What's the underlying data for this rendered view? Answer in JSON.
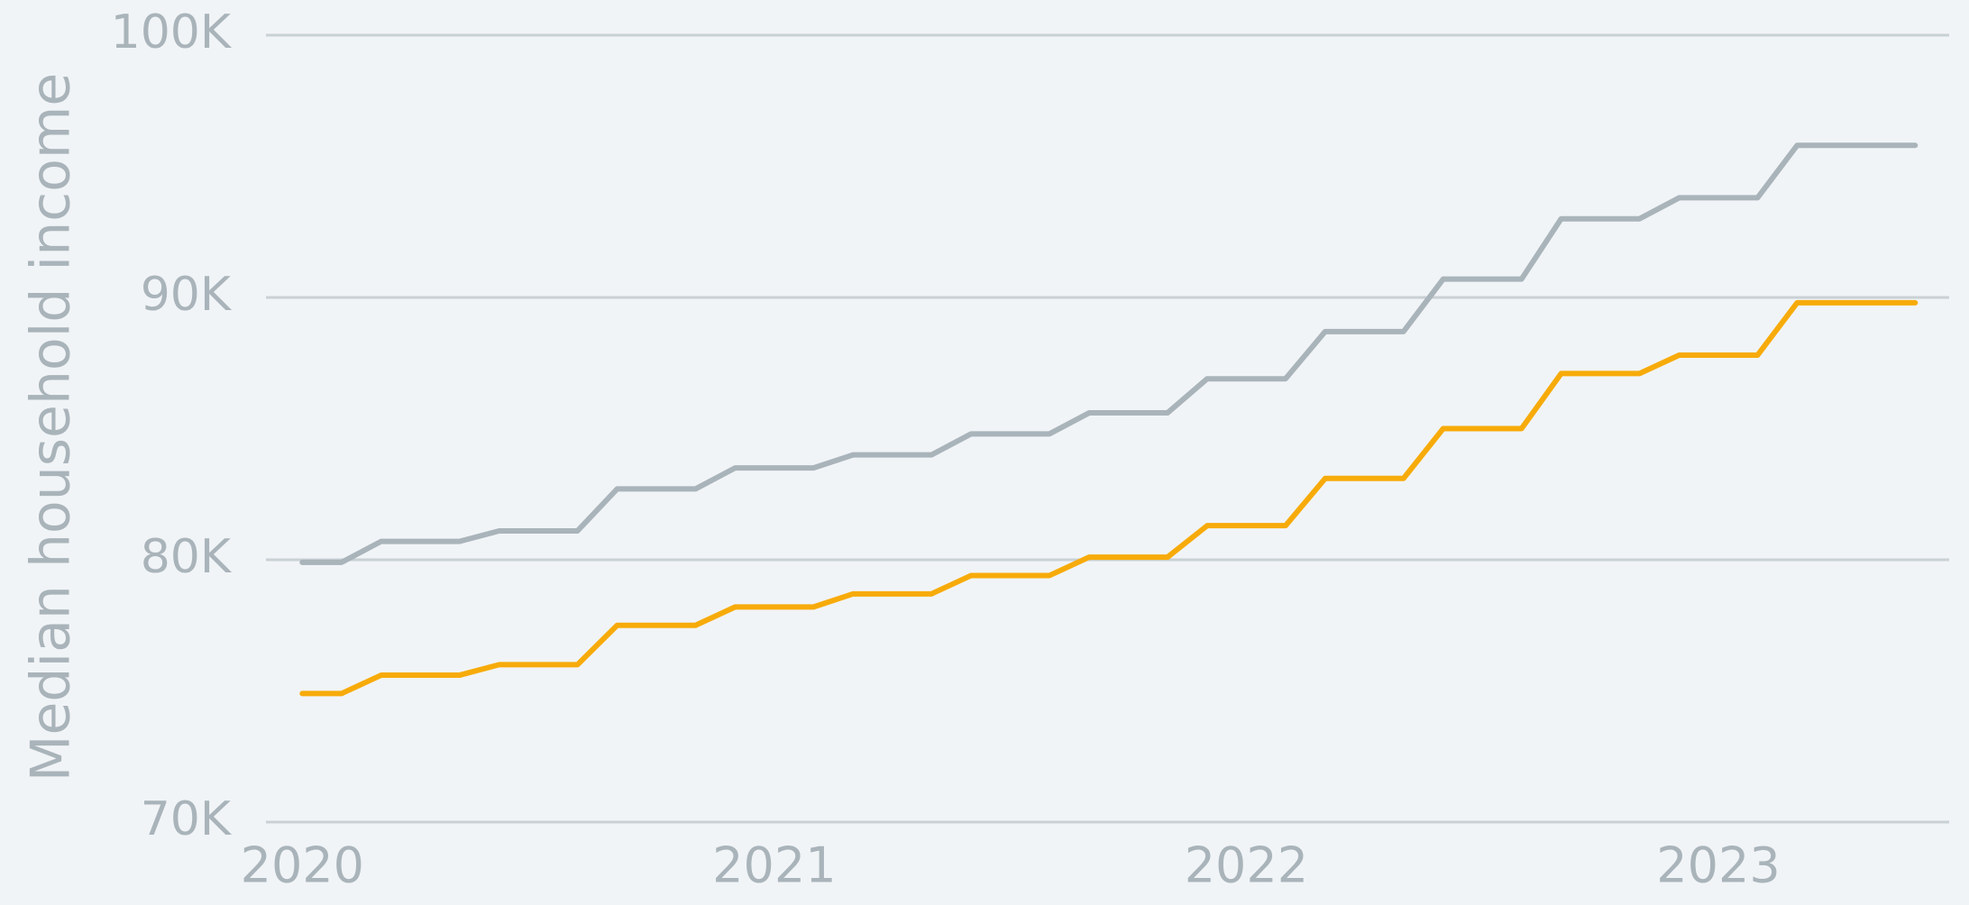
{
  "chart_data": {
    "type": "line",
    "y_label": "Median household income",
    "x": [
      2020,
      2020.083,
      2020.167,
      2020.333,
      2020.417,
      2020.583,
      2020.667,
      2020.833,
      2020.917,
      2021.083,
      2021.167,
      2021.333,
      2021.417,
      2021.583,
      2021.667,
      2021.833,
      2021.917,
      2022.083,
      2022.167,
      2022.333,
      2022.417,
      2022.583,
      2022.667,
      2022.833,
      2022.917,
      2023.083,
      2023.167,
      2023.417
    ],
    "series": [
      {
        "color": "#a9b4ba",
        "values": [
          79900,
          79900,
          80700,
          80700,
          81100,
          81100,
          82700,
          82700,
          83500,
          83500,
          84000,
          84000,
          84800,
          84800,
          85600,
          85600,
          86900,
          86900,
          88700,
          88700,
          90700,
          90700,
          93000,
          93000,
          93800,
          93800,
          95800,
          95800
        ]
      },
      {
        "color": "#f7ab0a",
        "values": [
          74900,
          74900,
          75600,
          75600,
          76000,
          76000,
          77500,
          77500,
          78200,
          78200,
          78700,
          78700,
          79400,
          79400,
          80100,
          80100,
          81300,
          81300,
          83100,
          83100,
          85000,
          85000,
          87100,
          87100,
          87800,
          87800,
          89800,
          89800
        ]
      }
    ],
    "xlim": [
      2019.923,
      2023.489
    ],
    "xticks": [
      2020,
      2021,
      2022,
      2023
    ],
    "ylim": [
      70000,
      100000
    ],
    "yticks": [
      {
        "value": 70000,
        "label": "70K"
      },
      {
        "value": 80000,
        "label": "80K"
      },
      {
        "value": 90000,
        "label": "90K"
      },
      {
        "value": 100000,
        "label": "100K"
      }
    ],
    "grid": true
  }
}
